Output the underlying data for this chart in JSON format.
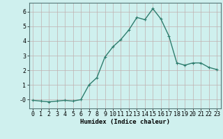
{
  "x": [
    0,
    1,
    2,
    3,
    4,
    5,
    6,
    7,
    8,
    9,
    10,
    11,
    12,
    13,
    14,
    15,
    16,
    17,
    18,
    19,
    20,
    21,
    22,
    23
  ],
  "y": [
    -0.05,
    -0.1,
    -0.15,
    -0.1,
    -0.05,
    -0.1,
    0.0,
    1.0,
    1.5,
    2.9,
    3.6,
    4.1,
    4.75,
    5.6,
    5.45,
    6.2,
    5.5,
    4.35,
    2.5,
    2.35,
    2.5,
    2.5,
    2.2,
    2.05
  ],
  "xlabel": "Humidex (Indice chaleur)",
  "bg_color": "#cff0ee",
  "grid_color": "#c0b0b0",
  "line_color": "#2e7d6e",
  "marker_color": "#2e7d6e",
  "xlim": [
    -0.5,
    23.5
  ],
  "ylim": [
    -0.6,
    6.6
  ],
  "yticks": [
    0,
    1,
    2,
    3,
    4,
    5,
    6
  ],
  "ytick_labels": [
    "-0",
    "1",
    "2",
    "3",
    "4",
    "5",
    "6"
  ],
  "xtick_labels": [
    "0",
    "1",
    "2",
    "3",
    "4",
    "5",
    "6",
    "7",
    "8",
    "9",
    "10",
    "11",
    "12",
    "13",
    "14",
    "15",
    "16",
    "17",
    "18",
    "19",
    "20",
    "21",
    "22",
    "23"
  ],
  "xlabel_fontsize": 6.5,
  "tick_fontsize": 6.0,
  "marker_size": 2.5,
  "line_width": 1.0
}
